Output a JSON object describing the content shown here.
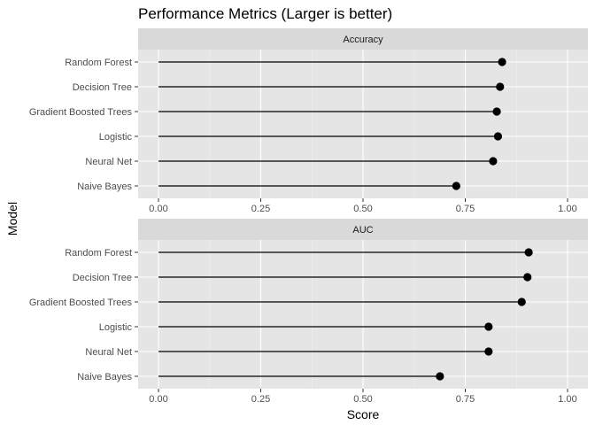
{
  "chart_data": {
    "type": "lollipop",
    "title": "Performance Metrics (Larger is better)",
    "xlabel": "Score",
    "ylabel": "Model",
    "xlim": [
      0,
      1
    ],
    "x_ticks": [
      0,
      0.25,
      0.5,
      0.75,
      1
    ],
    "x_tick_labels": [
      "0.00",
      "0.25",
      "0.50",
      "0.75",
      "1.00"
    ],
    "categories": [
      "Random Forest",
      "Decision Tree",
      "Gradient Boosted Trees",
      "Logistic",
      "Neural Net",
      "Naive Bayes"
    ],
    "panels": [
      {
        "name": "Accuracy",
        "values": [
          0.84,
          0.835,
          0.827,
          0.83,
          0.818,
          0.728
        ]
      },
      {
        "name": "AUC",
        "values": [
          0.905,
          0.902,
          0.888,
          0.807,
          0.807,
          0.688
        ]
      }
    ],
    "grid": true,
    "colors": {
      "panel_bg": "#e5e5e5",
      "strip_bg": "#d9d9d9",
      "grid_major": "#ffffff",
      "grid_minor": "#f0f0f0",
      "marker": "#000000"
    }
  }
}
